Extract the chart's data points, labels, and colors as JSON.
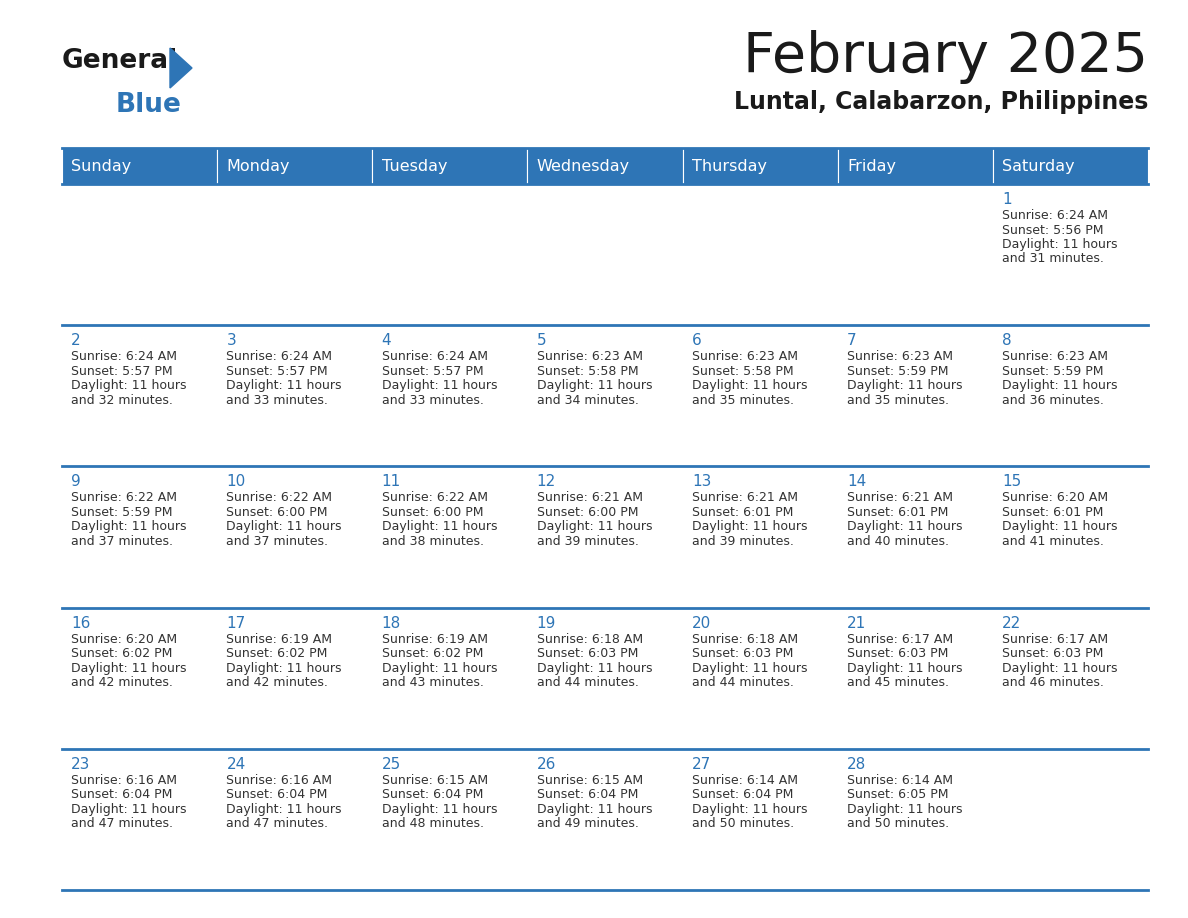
{
  "title": "February 2025",
  "subtitle": "Luntal, Calabarzon, Philippines",
  "header_color": "#2E75B6",
  "header_text_color": "#FFFFFF",
  "days_of_week": [
    "Sunday",
    "Monday",
    "Tuesday",
    "Wednesday",
    "Thursday",
    "Friday",
    "Saturday"
  ],
  "cell_bg_color": "#FFFFFF",
  "grid_line_color": "#2E75B6",
  "day_num_color": "#2E75B6",
  "info_text_color": "#333333",
  "title_color": "#1a1a1a",
  "subtitle_color": "#1a1a1a",
  "logo_general_color": "#1a1a1a",
  "logo_blue_color": "#2E75B6",
  "calendar_data": [
    [
      null,
      null,
      null,
      null,
      null,
      null,
      {
        "day": 1,
        "sunrise": "6:24 AM",
        "sunset": "5:56 PM",
        "daylight": "11 hours and 31 minutes."
      }
    ],
    [
      {
        "day": 2,
        "sunrise": "6:24 AM",
        "sunset": "5:57 PM",
        "daylight": "11 hours and 32 minutes."
      },
      {
        "day": 3,
        "sunrise": "6:24 AM",
        "sunset": "5:57 PM",
        "daylight": "11 hours and 33 minutes."
      },
      {
        "day": 4,
        "sunrise": "6:24 AM",
        "sunset": "5:57 PM",
        "daylight": "11 hours and 33 minutes."
      },
      {
        "day": 5,
        "sunrise": "6:23 AM",
        "sunset": "5:58 PM",
        "daylight": "11 hours and 34 minutes."
      },
      {
        "day": 6,
        "sunrise": "6:23 AM",
        "sunset": "5:58 PM",
        "daylight": "11 hours and 35 minutes."
      },
      {
        "day": 7,
        "sunrise": "6:23 AM",
        "sunset": "5:59 PM",
        "daylight": "11 hours and 35 minutes."
      },
      {
        "day": 8,
        "sunrise": "6:23 AM",
        "sunset": "5:59 PM",
        "daylight": "11 hours and 36 minutes."
      }
    ],
    [
      {
        "day": 9,
        "sunrise": "6:22 AM",
        "sunset": "5:59 PM",
        "daylight": "11 hours and 37 minutes."
      },
      {
        "day": 10,
        "sunrise": "6:22 AM",
        "sunset": "6:00 PM",
        "daylight": "11 hours and 37 minutes."
      },
      {
        "day": 11,
        "sunrise": "6:22 AM",
        "sunset": "6:00 PM",
        "daylight": "11 hours and 38 minutes."
      },
      {
        "day": 12,
        "sunrise": "6:21 AM",
        "sunset": "6:00 PM",
        "daylight": "11 hours and 39 minutes."
      },
      {
        "day": 13,
        "sunrise": "6:21 AM",
        "sunset": "6:01 PM",
        "daylight": "11 hours and 39 minutes."
      },
      {
        "day": 14,
        "sunrise": "6:21 AM",
        "sunset": "6:01 PM",
        "daylight": "11 hours and 40 minutes."
      },
      {
        "day": 15,
        "sunrise": "6:20 AM",
        "sunset": "6:01 PM",
        "daylight": "11 hours and 41 minutes."
      }
    ],
    [
      {
        "day": 16,
        "sunrise": "6:20 AM",
        "sunset": "6:02 PM",
        "daylight": "11 hours and 42 minutes."
      },
      {
        "day": 17,
        "sunrise": "6:19 AM",
        "sunset": "6:02 PM",
        "daylight": "11 hours and 42 minutes."
      },
      {
        "day": 18,
        "sunrise": "6:19 AM",
        "sunset": "6:02 PM",
        "daylight": "11 hours and 43 minutes."
      },
      {
        "day": 19,
        "sunrise": "6:18 AM",
        "sunset": "6:03 PM",
        "daylight": "11 hours and 44 minutes."
      },
      {
        "day": 20,
        "sunrise": "6:18 AM",
        "sunset": "6:03 PM",
        "daylight": "11 hours and 44 minutes."
      },
      {
        "day": 21,
        "sunrise": "6:17 AM",
        "sunset": "6:03 PM",
        "daylight": "11 hours and 45 minutes."
      },
      {
        "day": 22,
        "sunrise": "6:17 AM",
        "sunset": "6:03 PM",
        "daylight": "11 hours and 46 minutes."
      }
    ],
    [
      {
        "day": 23,
        "sunrise": "6:16 AM",
        "sunset": "6:04 PM",
        "daylight": "11 hours and 47 minutes."
      },
      {
        "day": 24,
        "sunrise": "6:16 AM",
        "sunset": "6:04 PM",
        "daylight": "11 hours and 47 minutes."
      },
      {
        "day": 25,
        "sunrise": "6:15 AM",
        "sunset": "6:04 PM",
        "daylight": "11 hours and 48 minutes."
      },
      {
        "day": 26,
        "sunrise": "6:15 AM",
        "sunset": "6:04 PM",
        "daylight": "11 hours and 49 minutes."
      },
      {
        "day": 27,
        "sunrise": "6:14 AM",
        "sunset": "6:04 PM",
        "daylight": "11 hours and 50 minutes."
      },
      {
        "day": 28,
        "sunrise": "6:14 AM",
        "sunset": "6:05 PM",
        "daylight": "11 hours and 50 minutes."
      },
      null
    ]
  ]
}
